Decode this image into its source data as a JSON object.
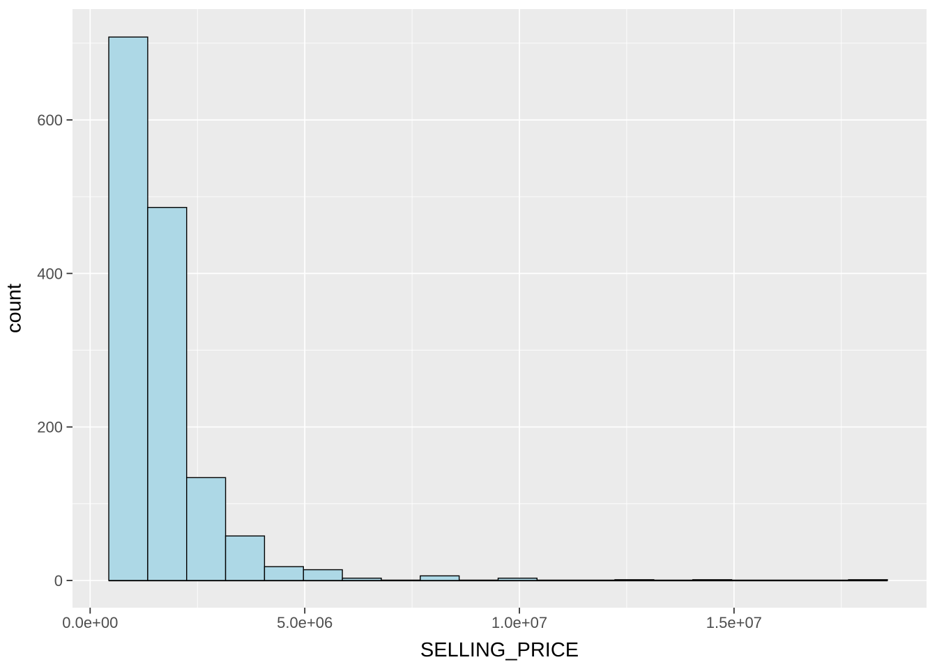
{
  "chart_data": {
    "type": "bar",
    "subtype": "histogram",
    "title": "",
    "xlabel": "SELLING_PRICE",
    "ylabel": "count",
    "bin_start": 434000,
    "bin_width": 907000,
    "counts": [
      708,
      486,
      134,
      58,
      18,
      14,
      3,
      0,
      6,
      0,
      3,
      0,
      0,
      1,
      0,
      1,
      0,
      0,
      0,
      1
    ],
    "x_domain": [
      -411000,
      19485000
    ],
    "y_domain": [
      -35.45,
      744.45
    ],
    "x_ticks": [
      {
        "value": 0,
        "label": "0.0e+00"
      },
      {
        "value": 5000000,
        "label": "5.0e+06"
      },
      {
        "value": 10000000,
        "label": "1.0e+07"
      },
      {
        "value": 15000000,
        "label": "1.5e+07"
      }
    ],
    "y_ticks": [
      {
        "value": 0,
        "label": "0"
      },
      {
        "value": 200,
        "label": "200"
      },
      {
        "value": 400,
        "label": "400"
      },
      {
        "value": 600,
        "label": "600"
      }
    ],
    "x_minor_ticks": [
      2500000,
      7500000,
      12500000,
      17500000
    ],
    "y_minor_ticks": [
      100,
      300,
      500,
      700
    ],
    "grid": true,
    "legend": "none",
    "colors": {
      "bar_fill": "#ADD8E6",
      "bar_stroke": "#000000",
      "panel_bg": "#EBEBEB",
      "grid_major": "#FFFFFF",
      "grid_minor": "#FFFFFF",
      "tick_label": "#4D4D4D",
      "axis_title": "#000000",
      "tick_mark": "#333333",
      "baseline": "#000000",
      "page_bg": "#FFFFFF"
    }
  }
}
